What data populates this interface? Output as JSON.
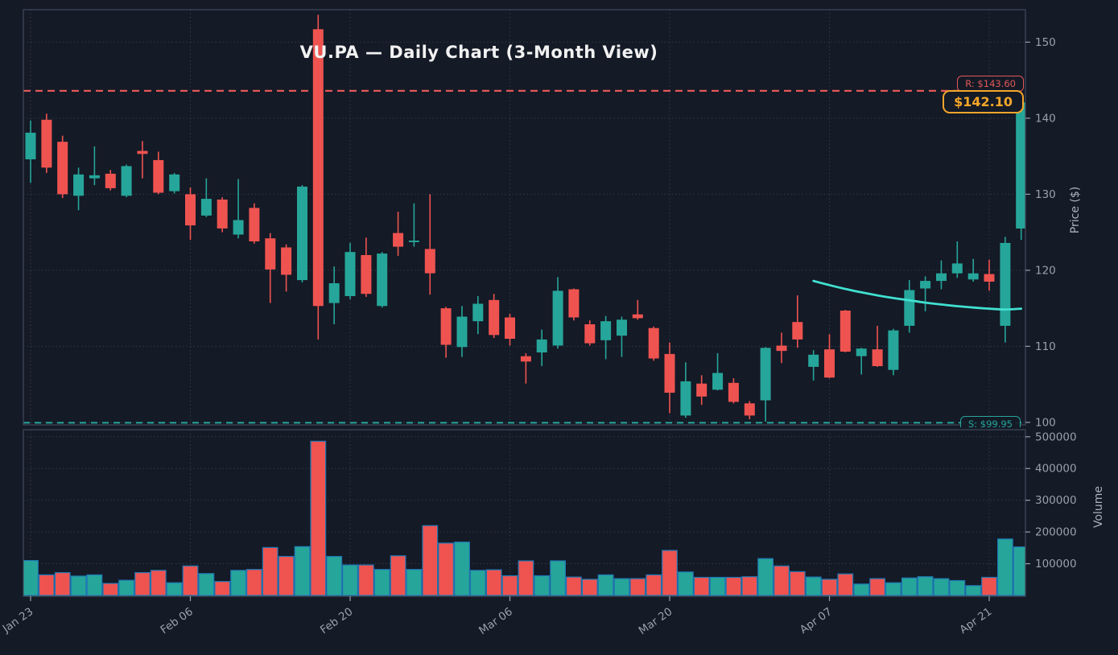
{
  "title": "VU.PA — Daily Chart (3-Month View)",
  "annotations": {
    "resistance_label": "R: $143.60",
    "support_label": "S: $99.95",
    "last_price_label": "$142.10"
  },
  "colors": {
    "background": "#141a26",
    "grid": "#323a4a",
    "spine": "#414a5c",
    "tick_text": "#9aa1ad",
    "title_text": "#f2f2f2",
    "candle_up": "#26a69a",
    "candle_down": "#ef5350",
    "volume_edge": "#1f77b4",
    "ma_line": "#40e0d0",
    "resistance": "#e25858",
    "support": "#26a69a",
    "badge": "#f5a62a"
  },
  "chart_data": {
    "type": "candlestick_with_volume",
    "title": "VU.PA — Daily Chart (3-Month View)",
    "x_tick_labels": [
      "Jan 23",
      "Feb 06",
      "Feb 20",
      "Mar 06",
      "Mar 20",
      "Apr 07",
      "Apr 21"
    ],
    "x_tick_indices": [
      0,
      10,
      20,
      30,
      40,
      50,
      60
    ],
    "price_axis": {
      "label": "Price ($)",
      "ticks": [
        100,
        110,
        120,
        130,
        140,
        150
      ],
      "range": [
        99.7,
        154.4
      ]
    },
    "volume_axis": {
      "label": "Volume",
      "ticks": [
        100000,
        200000,
        300000,
        400000,
        500000
      ],
      "range": [
        0,
        524000
      ]
    },
    "grid": true,
    "legend": false,
    "resistance": {
      "value": 143.6,
      "label": "R: $143.60"
    },
    "support": {
      "value": 99.95,
      "label": "S: $99.95"
    },
    "last_price": {
      "value": 142.1,
      "label": "$142.10"
    },
    "ma_line": {
      "start_index": 49,
      "values": [
        118.6,
        118.05,
        117.55,
        117.1,
        116.7,
        116.35,
        116.05,
        115.75,
        115.5,
        115.28,
        115.1,
        114.95,
        114.85,
        114.95
      ]
    },
    "candles": {
      "open": [
        134.6,
        139.8,
        136.9,
        129.8,
        132.1,
        132.7,
        129.8,
        135.7,
        134.5,
        130.4,
        130.0,
        127.2,
        129.3,
        124.7,
        128.2,
        124.2,
        123.0,
        118.7,
        151.7,
        115.7,
        116.6,
        122.0,
        115.3,
        124.9,
        123.7,
        122.8,
        115.0,
        109.9,
        113.3,
        116.1,
        113.8,
        108.7,
        109.2,
        110.1,
        117.5,
        112.9,
        110.8,
        111.4,
        114.2,
        112.4,
        109.0,
        100.9,
        105.1,
        104.3,
        105.2,
        102.5,
        102.9,
        110.1,
        113.2,
        107.3,
        109.6,
        114.7,
        108.7,
        109.6,
        106.9,
        112.7,
        117.6,
        118.6,
        119.6,
        118.8,
        119.5,
        112.7,
        125.5
      ],
      "high": [
        139.7,
        140.6,
        137.7,
        133.5,
        136.3,
        133.2,
        133.9,
        137.0,
        135.6,
        132.8,
        130.9,
        132.1,
        129.6,
        132.0,
        128.8,
        124.9,
        123.4,
        131.2,
        153.6,
        120.5,
        123.6,
        124.3,
        122.4,
        127.7,
        128.8,
        130.0,
        115.2,
        115.3,
        116.6,
        116.9,
        114.3,
        109.1,
        112.2,
        119.1,
        117.6,
        113.4,
        114.0,
        113.9,
        116.1,
        112.6,
        110.5,
        107.9,
        106.2,
        109.1,
        105.8,
        102.8,
        109.9,
        111.8,
        116.7,
        109.5,
        111.6,
        114.8,
        109.8,
        112.7,
        112.3,
        118.7,
        119.2,
        121.3,
        123.8,
        121.5,
        121.4,
        124.4,
        142.5
      ],
      "low": [
        131.5,
        132.8,
        129.5,
        127.9,
        131.2,
        130.5,
        129.6,
        132.1,
        130.0,
        130.1,
        124.0,
        127.0,
        125.0,
        124.2,
        123.5,
        115.7,
        117.2,
        118.4,
        110.9,
        112.9,
        116.2,
        116.5,
        115.1,
        121.9,
        123.1,
        116.8,
        108.5,
        108.6,
        111.6,
        111.1,
        110.1,
        105.1,
        107.4,
        109.7,
        113.4,
        110.1,
        108.3,
        108.6,
        113.5,
        108.1,
        101.2,
        100.6,
        102.3,
        104.2,
        102.5,
        100.4,
        100.1,
        107.8,
        109.8,
        105.5,
        105.8,
        109.2,
        106.3,
        107.3,
        106.2,
        111.8,
        114.6,
        117.5,
        119.0,
        118.5,
        117.3,
        110.5,
        124.0
      ],
      "close": [
        138.1,
        133.5,
        130.0,
        132.6,
        132.5,
        130.8,
        133.7,
        135.3,
        130.2,
        132.6,
        125.9,
        129.4,
        125.5,
        126.6,
        123.8,
        120.1,
        119.4,
        131.0,
        115.3,
        118.3,
        122.4,
        116.9,
        122.2,
        123.1,
        123.9,
        119.6,
        110.2,
        113.9,
        115.6,
        111.5,
        111.0,
        108.0,
        110.9,
        117.3,
        113.8,
        110.4,
        113.3,
        113.5,
        113.7,
        108.4,
        103.9,
        105.4,
        103.4,
        106.5,
        102.7,
        100.9,
        109.8,
        109.4,
        110.9,
        108.9,
        105.9,
        109.3,
        109.7,
        107.4,
        112.1,
        117.4,
        118.6,
        119.6,
        120.9,
        119.6,
        118.5,
        123.6,
        142.1
      ]
    },
    "volume": [
      110000,
      65000,
      72000,
      61000,
      65000,
      38000,
      48000,
      72000,
      79000,
      40000,
      93000,
      69000,
      44000,
      79000,
      82000,
      151000,
      123000,
      154000,
      486000,
      123000,
      96000,
      96000,
      82000,
      125000,
      82000,
      220000,
      165000,
      168000,
      79000,
      81000,
      62000,
      109000,
      62000,
      109000,
      58000,
      51000,
      65000,
      53000,
      53000,
      65000,
      142000,
      74000,
      57000,
      57000,
      57000,
      59000,
      116000,
      93000,
      75000,
      58000,
      51000,
      68000,
      36000,
      53000,
      40000,
      55000,
      59000,
      53000,
      47000,
      31000,
      57000,
      178000,
      153000
    ]
  }
}
